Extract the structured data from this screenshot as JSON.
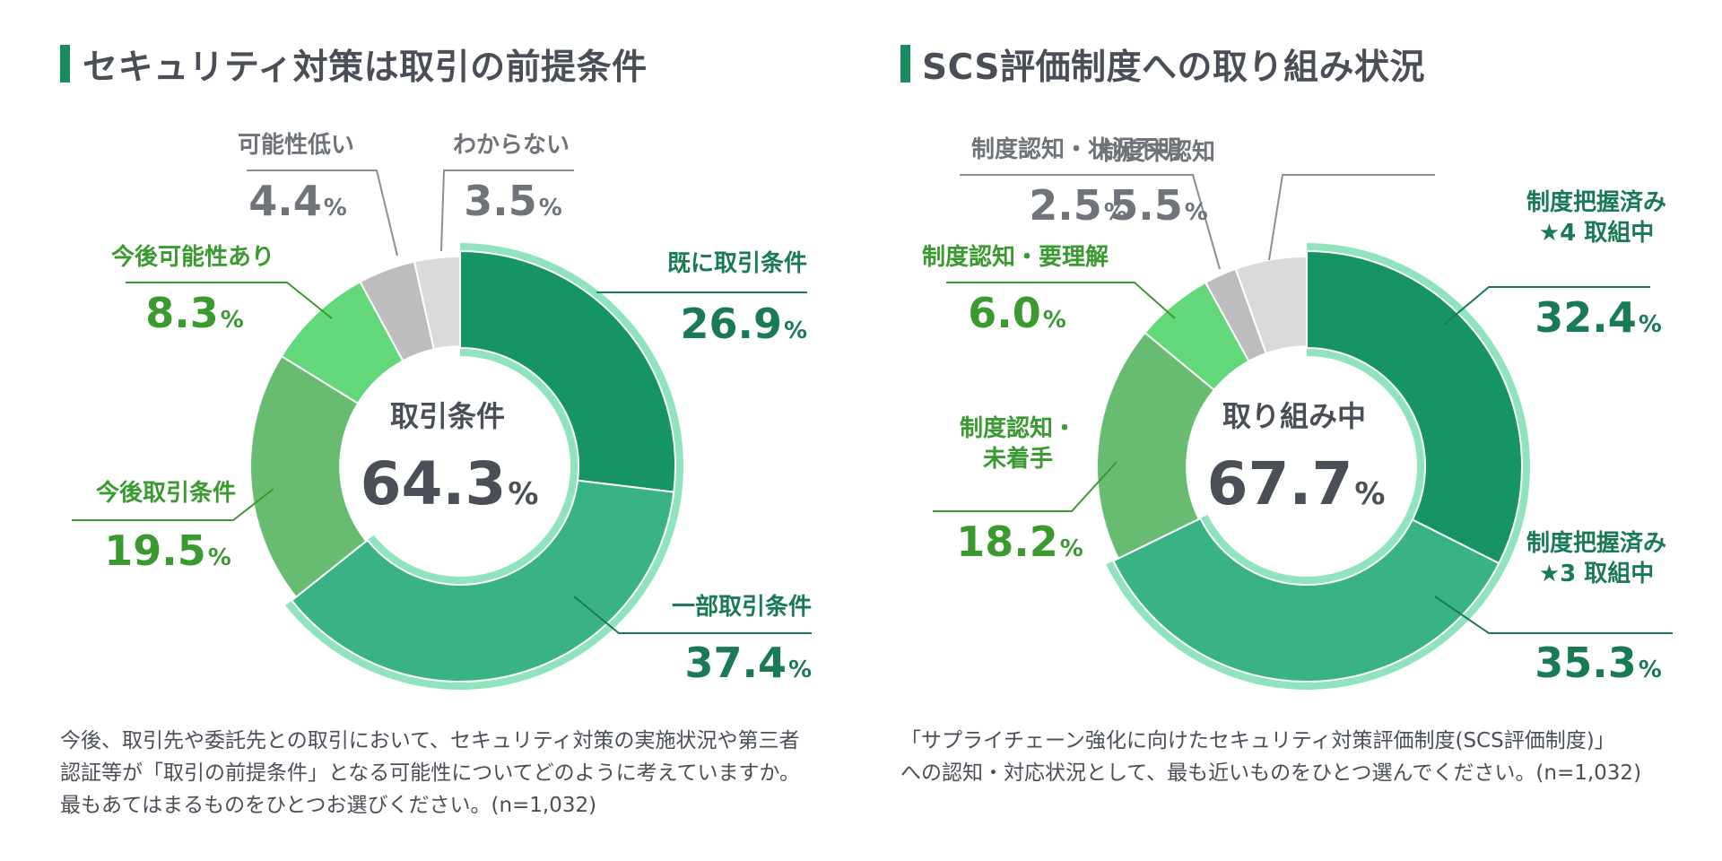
{
  "panels": [
    {
      "title": "セキュリティ対策は取引の前提条件",
      "note": "今後、取引先や委託先との取引において、セキュリティ対策の実施状況や第三者\n認証等が「取引の前提条件」となる可能性についてどのように考えていますか。\n最もあてはまるものをひとつお選びください。(n=1,032)"
    },
    {
      "title": "SCS評価制度への取り組み状況",
      "note": "「サプライチェーン強化に向けたセキュリティ対策評価制度(SCS評価制度)」\nへの認知・対応状況として、最も近いものをひとつ選んでください。(n=1,032)"
    }
  ],
  "chart_data": [
    {
      "type": "pie",
      "variant": "donut",
      "center_label": "取引条件",
      "center_value": "64.3",
      "unit": "%",
      "slices": [
        {
          "label": "既に取引条件",
          "value": 26.9,
          "color": "#169464",
          "text_color": "#1a7a55",
          "highlight": true
        },
        {
          "label": "一部取引条件",
          "value": 37.4,
          "color": "#39b384",
          "text_color": "#1a7a55",
          "highlight": true
        },
        {
          "label": "今後取引条件",
          "value": 19.5,
          "color": "#68bc72",
          "text_color": "#3a9a2f",
          "highlight": false
        },
        {
          "label": "今後可能性あり",
          "value": 8.3,
          "color": "#63d87a",
          "text_color": "#3a9a2f",
          "highlight": false
        },
        {
          "label": "可能性低い",
          "value": 4.4,
          "color": "#bdbdbd",
          "text_color": "#6f737a",
          "highlight": false
        },
        {
          "label": "わからない",
          "value": 3.5,
          "color": "#dadada",
          "text_color": "#6f737a",
          "highlight": false
        }
      ]
    },
    {
      "type": "pie",
      "variant": "donut",
      "center_label": "取り組み中",
      "center_value": "67.7",
      "unit": "%",
      "slices": [
        {
          "label": "制度把握済み\n★4 取組中",
          "value": 32.4,
          "color": "#169464",
          "text_color": "#1a7a55",
          "highlight": true
        },
        {
          "label": "制度把握済み\n★3 取組中",
          "value": 35.3,
          "color": "#39b384",
          "text_color": "#1a7a55",
          "highlight": true
        },
        {
          "label": "制度認知・\n未着手",
          "value": 18.2,
          "color": "#68bc72",
          "text_color": "#3a9a2f",
          "highlight": false
        },
        {
          "label": "制度認知・要理解",
          "value": 6.0,
          "color": "#63d87a",
          "text_color": "#3a9a2f",
          "highlight": false
        },
        {
          "label": "制度認知・状況不明",
          "value": 2.5,
          "color": "#bdbdbd",
          "text_color": "#6f737a",
          "highlight": false
        },
        {
          "label": "制度未認知",
          "value": 5.5,
          "color": "#dadada",
          "text_color": "#6f737a",
          "highlight": false
        }
      ]
    }
  ]
}
